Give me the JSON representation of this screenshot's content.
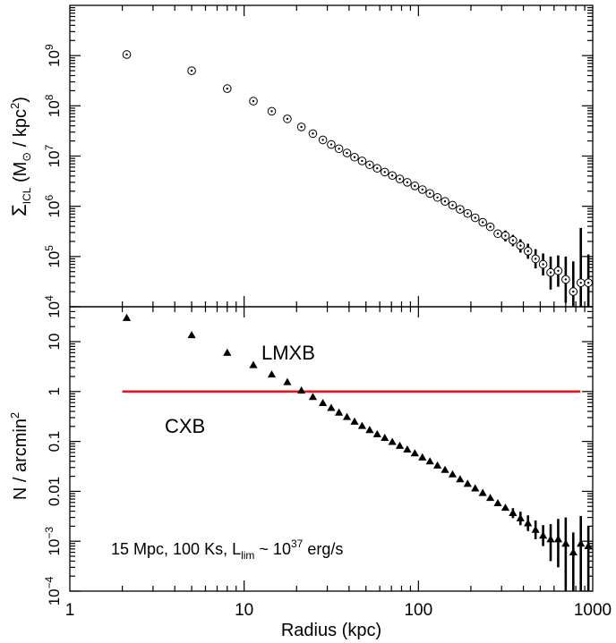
{
  "chart_data": [
    {
      "type": "scatter",
      "panel": "top",
      "ylabel": {
        "sigma": "Σ",
        "sigma_sub": "ICL",
        "open": " (M",
        "sun": "⊙",
        "unit": " / kpc",
        "unit_sup": "2",
        "close": ")"
      },
      "xscale": "log",
      "yscale": "log",
      "xlim": [
        1,
        1000
      ],
      "ylim": [
        10000,
        10000000000
      ],
      "yticks": [
        {
          "value": 10000,
          "base": "10",
          "exp": "4"
        },
        {
          "value": 100000,
          "base": "10",
          "exp": "5"
        },
        {
          "value": 1000000,
          "base": "10",
          "exp": "6"
        },
        {
          "value": 10000000,
          "base": "10",
          "exp": "7"
        },
        {
          "value": 100000000,
          "base": "10",
          "exp": "8"
        },
        {
          "value": 1000000000,
          "base": "10",
          "exp": "9"
        }
      ],
      "marker": "circled-dot",
      "points": [
        {
          "x": 2.12,
          "y": 1050000000
        },
        {
          "x": 5.0,
          "y": 500000000
        },
        {
          "x": 8.0,
          "y": 220000000
        },
        {
          "x": 11.3,
          "y": 124000000
        },
        {
          "x": 14.4,
          "y": 78000000
        },
        {
          "x": 17.7,
          "y": 55000000
        },
        {
          "x": 21.3,
          "y": 38000000
        },
        {
          "x": 24.8,
          "y": 28000000
        },
        {
          "x": 28.3,
          "y": 21000000
        },
        {
          "x": 31.6,
          "y": 17000000
        },
        {
          "x": 35.0,
          "y": 14000000
        },
        {
          "x": 38.9,
          "y": 11500000
        },
        {
          "x": 43.0,
          "y": 9500000
        },
        {
          "x": 47.5,
          "y": 8000000
        },
        {
          "x": 52.5,
          "y": 6700000
        },
        {
          "x": 58.0,
          "y": 5700000
        },
        {
          "x": 64.1,
          "y": 4800000
        },
        {
          "x": 70.8,
          "y": 4100000
        },
        {
          "x": 78.2,
          "y": 3500000
        },
        {
          "x": 86.3,
          "y": 3000000
        },
        {
          "x": 95.4,
          "y": 2550000
        },
        {
          "x": 105.4,
          "y": 2150000
        },
        {
          "x": 116.4,
          "y": 1800000
        },
        {
          "x": 128.6,
          "y": 1500000
        },
        {
          "x": 142.1,
          "y": 1250000
        },
        {
          "x": 157.0,
          "y": 1050000
        },
        {
          "x": 173.4,
          "y": 870000
        },
        {
          "x": 191.6,
          "y": 720000
        },
        {
          "x": 211.7,
          "y": 590000
        },
        {
          "x": 233.9,
          "y": 480000
        },
        {
          "x": 258.4,
          "y": 390000
        },
        {
          "x": 285.5,
          "y": 285000
        },
        {
          "x": 315.4,
          "y": 260000,
          "err": [
            200000,
            330000
          ]
        },
        {
          "x": 348.5,
          "y": 210000,
          "err": [
            160000,
            270000
          ]
        },
        {
          "x": 385.0,
          "y": 165000,
          "err": [
            120000,
            220000
          ]
        },
        {
          "x": 425.3,
          "y": 128000,
          "err": [
            90000,
            180000
          ]
        },
        {
          "x": 469.9,
          "y": 90000,
          "err": [
            58000,
            140000
          ]
        },
        {
          "x": 519.2,
          "y": 70000,
          "err": [
            42000,
            115000
          ]
        },
        {
          "x": 573.6,
          "y": 48000,
          "err": [
            22000,
            100000
          ]
        },
        {
          "x": 633.7,
          "y": 52000,
          "err": [
            25000,
            105000
          ]
        },
        {
          "x": 700.1,
          "y": 35000,
          "err": [
            12000,
            100000
          ]
        },
        {
          "x": 773.5,
          "y": 20000,
          "err": [
            10000,
            80000
          ]
        },
        {
          "x": 854.6,
          "y": 30000,
          "err": [
            10000,
            370000
          ]
        },
        {
          "x": 944.1,
          "y": 30000,
          "err": [
            10000,
            110000
          ]
        }
      ]
    },
    {
      "type": "scatter",
      "panel": "bottom",
      "xlabel": "Radius (kpc)",
      "ylabel": {
        "text": "N / arcmin",
        "sup": "2"
      },
      "xscale": "log",
      "yscale": "log",
      "xlim": [
        1,
        1000
      ],
      "ylim": [
        0.0001,
        50
      ],
      "xticks": [
        {
          "value": 1,
          "label": "1"
        },
        {
          "value": 10,
          "label": "10"
        },
        {
          "value": 100,
          "label": "100"
        },
        {
          "value": 1000,
          "label": "1000"
        }
      ],
      "yticks": [
        {
          "value": 0.0001,
          "base": "10",
          "exp": "−4"
        },
        {
          "value": 0.001,
          "base": "10",
          "exp": "−3"
        },
        {
          "value": 0.01,
          "label": "0.01"
        },
        {
          "value": 0.1,
          "label": "0.1"
        },
        {
          "value": 1,
          "label": "1"
        },
        {
          "value": 10,
          "label": "10"
        }
      ],
      "marker": "filled-triangle",
      "series_label": "LMXB",
      "hline": {
        "y": 1,
        "x_from": 2,
        "x_to": 850,
        "label": "CXB",
        "color": "#e8141c"
      },
      "annotation": {
        "main": "15 Mpc, 100 Ks, L",
        "sub": "lim",
        "mid": " ~ 10",
        "sup": "37",
        "tail": " erg/s"
      },
      "points": [
        {
          "x": 2.12,
          "y": 30
        },
        {
          "x": 5.0,
          "y": 13.5
        },
        {
          "x": 8.0,
          "y": 6.0
        },
        {
          "x": 11.3,
          "y": 3.4
        },
        {
          "x": 14.4,
          "y": 2.2
        },
        {
          "x": 17.7,
          "y": 1.55
        },
        {
          "x": 21.3,
          "y": 1.05
        },
        {
          "x": 24.8,
          "y": 0.78
        },
        {
          "x": 28.3,
          "y": 0.59
        },
        {
          "x": 31.6,
          "y": 0.47
        },
        {
          "x": 35.0,
          "y": 0.38
        },
        {
          "x": 38.9,
          "y": 0.31
        },
        {
          "x": 43.0,
          "y": 0.25
        },
        {
          "x": 47.5,
          "y": 0.205
        },
        {
          "x": 52.5,
          "y": 0.17
        },
        {
          "x": 58.0,
          "y": 0.14
        },
        {
          "x": 64.1,
          "y": 0.118
        },
        {
          "x": 70.8,
          "y": 0.098
        },
        {
          "x": 78.2,
          "y": 0.082
        },
        {
          "x": 86.3,
          "y": 0.069
        },
        {
          "x": 95.4,
          "y": 0.058
        },
        {
          "x": 105.4,
          "y": 0.048
        },
        {
          "x": 116.4,
          "y": 0.04
        },
        {
          "x": 128.6,
          "y": 0.033
        },
        {
          "x": 142.1,
          "y": 0.027
        },
        {
          "x": 157.0,
          "y": 0.022
        },
        {
          "x": 173.4,
          "y": 0.0175
        },
        {
          "x": 191.6,
          "y": 0.0142
        },
        {
          "x": 211.7,
          "y": 0.0115
        },
        {
          "x": 233.9,
          "y": 0.0093
        },
        {
          "x": 258.4,
          "y": 0.0074
        },
        {
          "x": 285.5,
          "y": 0.0058
        },
        {
          "x": 315.4,
          "y": 0.0047
        },
        {
          "x": 348.5,
          "y": 0.0037,
          "err": [
            0.0029,
            0.0046
          ]
        },
        {
          "x": 385.0,
          "y": 0.0029,
          "err": [
            0.0021,
            0.0039
          ]
        },
        {
          "x": 425.3,
          "y": 0.0023,
          "err": [
            0.0016,
            0.0033
          ]
        },
        {
          "x": 469.9,
          "y": 0.0017,
          "err": [
            0.0011,
            0.0026
          ]
        },
        {
          "x": 519.2,
          "y": 0.0013,
          "err": [
            0.0008,
            0.0021
          ]
        },
        {
          "x": 573.6,
          "y": 0.0011,
          "err": [
            0.0004,
            0.0022
          ]
        },
        {
          "x": 633.7,
          "y": 0.0011,
          "err": [
            0.0003,
            0.0028
          ]
        },
        {
          "x": 700.1,
          "y": 0.0009,
          "err": [
            0.0001,
            0.003
          ]
        },
        {
          "x": 773.5,
          "y": 0.0006,
          "err": [
            0.0001,
            0.0015
          ]
        },
        {
          "x": 854.6,
          "y": 0.0009,
          "err": [
            0.0001,
            0.0032
          ]
        },
        {
          "x": 944.1,
          "y": 0.0008,
          "err": [
            0.0001,
            0.002
          ]
        }
      ]
    }
  ]
}
